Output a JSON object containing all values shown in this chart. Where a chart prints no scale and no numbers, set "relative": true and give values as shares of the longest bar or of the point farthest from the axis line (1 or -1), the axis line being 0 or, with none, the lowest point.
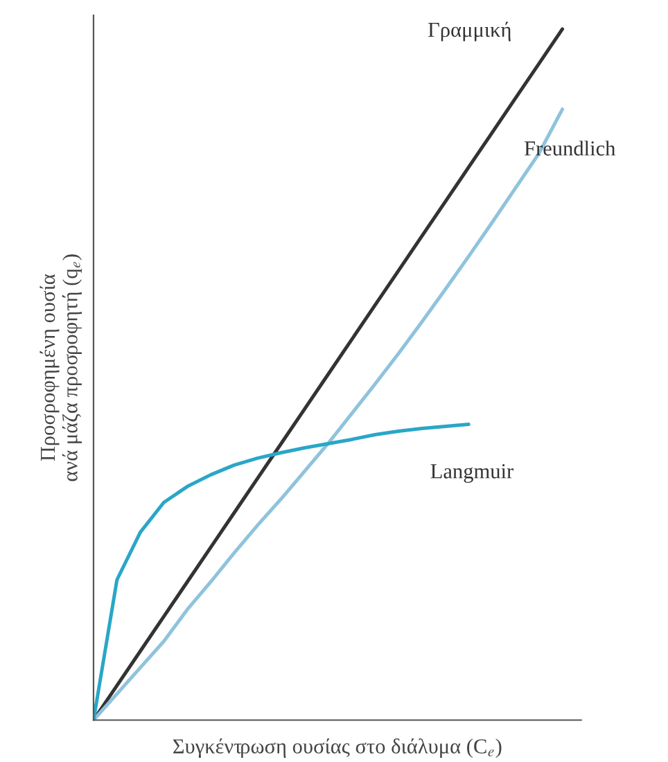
{
  "chart_data": {
    "type": "line",
    "relative": true,
    "xlabel": "Συγκέντρωση ουσίας στο διάλυμα (C$_{e}$)",
    "ylabel": "Προσροφημένη ουσία\nανά μάζα προσροφητή (q$_{e}$)",
    "legend": false,
    "marker": "none",
    "line_style": "solid",
    "categories": [
      null,
      null,
      null,
      null,
      null,
      null,
      null,
      null,
      null,
      null,
      null,
      null,
      null,
      null,
      null,
      null,
      null,
      null,
      null,
      null,
      null
    ],
    "series": [
      {
        "name": "Γραμμική",
        "color": "#333333",
        "values": [
          0,
          0.05,
          0.1,
          0.15,
          0.2,
          0.25,
          0.3,
          0.35,
          0.4,
          0.45,
          0.5,
          0.55,
          0.6,
          0.65,
          0.7,
          0.75,
          0.8,
          0.85,
          0.9,
          0.95,
          1.0
        ]
      },
      {
        "name": "Freundlich",
        "color": "#8fc3dc",
        "values": [
          0,
          0.038,
          0.076,
          0.114,
          0.16,
          0.2,
          0.242,
          0.282,
          0.32,
          0.36,
          0.4,
          0.443,
          0.486,
          0.53,
          0.576,
          0.623,
          0.671,
          0.72,
          0.77,
          0.82,
          0.884
        ]
      },
      {
        "name": "Langmuir",
        "color": "#2aa6c8",
        "values": [
          0,
          0.203,
          0.272,
          0.315,
          0.338,
          0.355,
          0.369,
          0.379,
          0.387,
          0.394,
          0.4,
          0.406,
          0.413,
          0.418,
          0.422,
          0.425,
          0.428,
          null,
          null,
          null,
          null
        ]
      }
    ]
  }
}
